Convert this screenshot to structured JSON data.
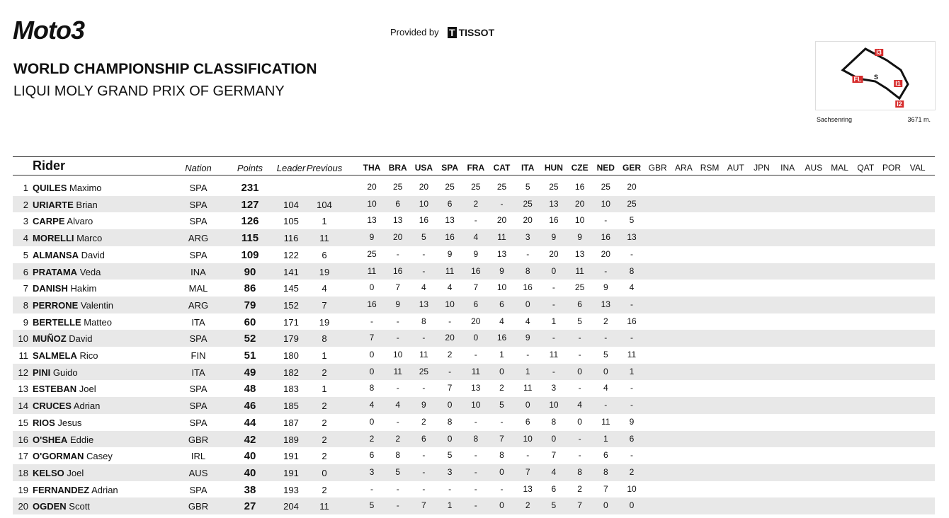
{
  "header": {
    "logo": "Moto3",
    "provided_by": "Provided by",
    "sponsor": "TISSOT",
    "title": "WORLD CHAMPIONSHIP CLASSIFICATION",
    "subtitle": "LIQUI MOLY GRAND PRIX OF GERMANY"
  },
  "track": {
    "labels": [
      "I3",
      "FL",
      "S",
      "I1",
      "I2"
    ],
    "name": "Sachsenring",
    "length": "3671 m."
  },
  "table": {
    "columns": [
      "Rider",
      "Nation",
      "Points",
      "Leader",
      "Previous"
    ],
    "races": [
      "THA",
      "BRA",
      "USA",
      "SPA",
      "FRA",
      "CAT",
      "ITA",
      "HUN",
      "CZE",
      "NED",
      "GER",
      "GBR",
      "ARA",
      "RSM",
      "AUT",
      "JPN",
      "INA",
      "AUS",
      "MAL",
      "QAT",
      "POR",
      "VAL"
    ],
    "rows": [
      {
        "pos": 1,
        "surname": "QUILES",
        "first": "Maximo",
        "nation": "SPA",
        "points": 231,
        "results": [
          20,
          25,
          20,
          25,
          25,
          25,
          5,
          25,
          16,
          25,
          20
        ]
      },
      {
        "pos": 2,
        "surname": "URIARTE",
        "first": "Brian",
        "nation": "SPA",
        "points": 127,
        "leader": 104,
        "previous": 104,
        "results": [
          10,
          6,
          10,
          6,
          2,
          "-",
          25,
          13,
          20,
          10,
          25
        ]
      },
      {
        "pos": 3,
        "surname": "CARPE",
        "first": "Alvaro",
        "nation": "SPA",
        "points": 126,
        "leader": 105,
        "previous": 1,
        "results": [
          13,
          13,
          16,
          13,
          "-",
          20,
          20,
          16,
          10,
          "-",
          5
        ]
      },
      {
        "pos": 4,
        "surname": "MORELLI",
        "first": "Marco",
        "nation": "ARG",
        "points": 115,
        "leader": 116,
        "previous": 11,
        "results": [
          9,
          20,
          5,
          16,
          4,
          11,
          3,
          9,
          9,
          16,
          13
        ]
      },
      {
        "pos": 5,
        "surname": "ALMANSA",
        "first": "David",
        "nation": "SPA",
        "points": 109,
        "leader": 122,
        "previous": 6,
        "results": [
          25,
          "-",
          "-",
          9,
          9,
          13,
          "-",
          20,
          13,
          20,
          "-"
        ]
      },
      {
        "pos": 6,
        "surname": "PRATAMA",
        "first": "Veda",
        "nation": "INA",
        "points": 90,
        "leader": 141,
        "previous": 19,
        "results": [
          11,
          16,
          "-",
          11,
          16,
          9,
          8,
          0,
          11,
          "-",
          8
        ]
      },
      {
        "pos": 7,
        "surname": "DANISH",
        "first": "Hakim",
        "nation": "MAL",
        "points": 86,
        "leader": 145,
        "previous": 4,
        "results": [
          0,
          7,
          4,
          4,
          7,
          10,
          16,
          "-",
          25,
          9,
          4
        ]
      },
      {
        "pos": 8,
        "surname": "PERRONE",
        "first": "Valentin",
        "nation": "ARG",
        "points": 79,
        "leader": 152,
        "previous": 7,
        "results": [
          16,
          9,
          13,
          10,
          6,
          6,
          0,
          "-",
          6,
          13,
          "-"
        ]
      },
      {
        "pos": 9,
        "surname": "BERTELLE",
        "first": "Matteo",
        "nation": "ITA",
        "points": 60,
        "leader": 171,
        "previous": 19,
        "results": [
          "-",
          "-",
          8,
          "-",
          20,
          4,
          4,
          1,
          5,
          2,
          16
        ]
      },
      {
        "pos": 10,
        "surname": "MUÑOZ",
        "first": "David",
        "nation": "SPA",
        "points": 52,
        "leader": 179,
        "previous": 8,
        "results": [
          7,
          "-",
          "-",
          20,
          0,
          16,
          9,
          "-",
          "-",
          "-",
          "-"
        ]
      },
      {
        "pos": 11,
        "surname": "SALMELA",
        "first": "Rico",
        "nation": "FIN",
        "points": 51,
        "leader": 180,
        "previous": 1,
        "results": [
          0,
          10,
          11,
          2,
          "-",
          1,
          "-",
          11,
          "-",
          5,
          11
        ]
      },
      {
        "pos": 12,
        "surname": "PINI",
        "first": "Guido",
        "nation": "ITA",
        "points": 49,
        "leader": 182,
        "previous": 2,
        "results": [
          0,
          11,
          25,
          "-",
          11,
          0,
          1,
          "-",
          0,
          0,
          1
        ]
      },
      {
        "pos": 13,
        "surname": "ESTEBAN",
        "first": "Joel",
        "nation": "SPA",
        "points": 48,
        "leader": 183,
        "previous": 1,
        "results": [
          8,
          "-",
          "-",
          7,
          13,
          2,
          11,
          3,
          "-",
          4,
          "-"
        ]
      },
      {
        "pos": 14,
        "surname": "CRUCES",
        "first": "Adrian",
        "nation": "SPA",
        "points": 46,
        "leader": 185,
        "previous": 2,
        "results": [
          4,
          4,
          9,
          0,
          10,
          5,
          0,
          10,
          4,
          "-",
          "-"
        ]
      },
      {
        "pos": 15,
        "surname": "RIOS",
        "first": "Jesus",
        "nation": "SPA",
        "points": 44,
        "leader": 187,
        "previous": 2,
        "results": [
          0,
          "-",
          2,
          8,
          "-",
          "-",
          6,
          8,
          0,
          11,
          9
        ]
      },
      {
        "pos": 16,
        "surname": "O'SHEA",
        "first": "Eddie",
        "nation": "GBR",
        "points": 42,
        "leader": 189,
        "previous": 2,
        "results": [
          2,
          2,
          6,
          0,
          8,
          7,
          10,
          0,
          "-",
          1,
          6
        ]
      },
      {
        "pos": 17,
        "surname": "O'GORMAN",
        "first": "Casey",
        "nation": "IRL",
        "points": 40,
        "leader": 191,
        "previous": 2,
        "results": [
          6,
          8,
          "-",
          5,
          "-",
          8,
          "-",
          7,
          "-",
          6,
          "-"
        ]
      },
      {
        "pos": 18,
        "surname": "KELSO",
        "first": "Joel",
        "nation": "AUS",
        "points": 40,
        "leader": 191,
        "previous": 0,
        "results": [
          3,
          5,
          "-",
          3,
          "-",
          0,
          7,
          4,
          8,
          8,
          2
        ]
      },
      {
        "pos": 19,
        "surname": "FERNANDEZ",
        "first": "Adrian",
        "nation": "SPA",
        "points": 38,
        "leader": 193,
        "previous": 2,
        "results": [
          "-",
          "-",
          "-",
          "-",
          "-",
          "-",
          13,
          6,
          2,
          7,
          10
        ]
      },
      {
        "pos": 20,
        "surname": "OGDEN",
        "first": "Scott",
        "nation": "GBR",
        "points": 27,
        "leader": 204,
        "previous": 11,
        "results": [
          5,
          "-",
          7,
          1,
          "-",
          0,
          2,
          5,
          7,
          0,
          0
        ]
      }
    ]
  }
}
